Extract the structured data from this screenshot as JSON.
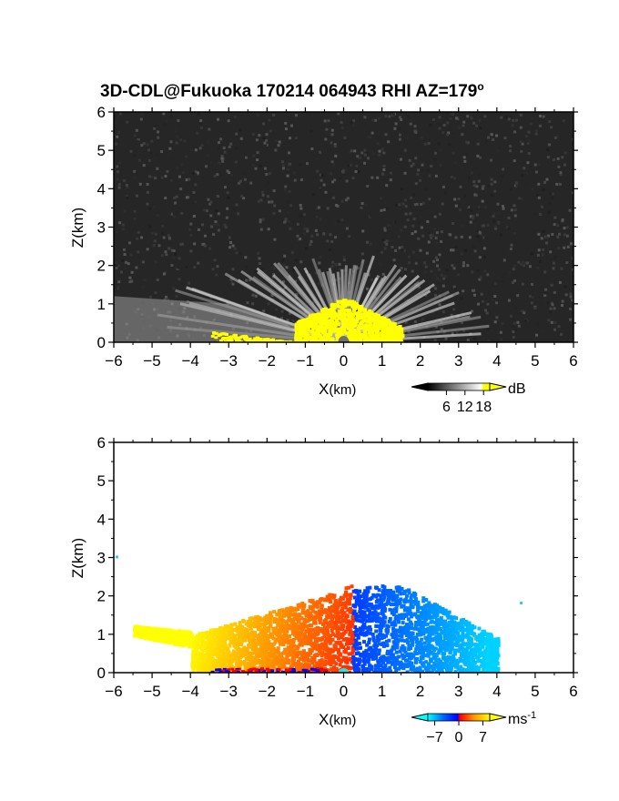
{
  "chart_data": [
    {
      "type": "heatmap",
      "title": "3D-CDL@Fukuoka 170214 064943 RHI AZ=179",
      "title_superscript": "o",
      "xlabel": "X",
      "xlabel_unit": "(km)",
      "ylabel": "Z(km)",
      "xlim": [
        -6,
        6
      ],
      "ylim": [
        0,
        6
      ],
      "xticks": [
        -6,
        -5,
        -4,
        -3,
        -2,
        -1,
        0,
        1,
        2,
        3,
        4,
        5,
        6
      ],
      "yticks": [
        0,
        1,
        2,
        3,
        4,
        5,
        6
      ],
      "colorbar": {
        "unit": "dB",
        "ticks": [
          6,
          12,
          18
        ],
        "range": [
          0,
          20
        ],
        "palette": "grayscale, values above 18 yellow",
        "colors": [
          "#000000",
          "#ffffff",
          "#ffff00"
        ]
      },
      "field_extent": {
        "echo_top_km": 2.3,
        "echo_x_range_km": [
          -6,
          4
        ],
        "saturated_core_x_range_km": [
          -1.3,
          1.5
        ],
        "saturated_core_top_km": 1.2
      }
    },
    {
      "type": "heatmap",
      "xlabel": "X",
      "xlabel_unit": "(km)",
      "ylabel": "Z(km)",
      "xlim": [
        -6,
        6
      ],
      "ylim": [
        0,
        6
      ],
      "xticks": [
        -6,
        -5,
        -4,
        -3,
        -2,
        -1,
        0,
        1,
        2,
        3,
        4,
        5,
        6
      ],
      "yticks": [
        0,
        1,
        2,
        3,
        4,
        5,
        6
      ],
      "colorbar": {
        "unit": "ms",
        "unit_superscript": "-1",
        "ticks": [
          "−7",
          "0",
          "7"
        ],
        "tick_values": [
          -7,
          0,
          7
        ],
        "range": [
          -9,
          9
        ],
        "palette": "cyan-blue (negative) to red-yellow (positive)",
        "colors": [
          "#00ffff",
          "#0033ff",
          "#ff0000",
          "#ff9900",
          "#ffff00"
        ]
      },
      "field_extent": {
        "echo_top_km": 2.3,
        "echo_x_range_km": [
          -5.5,
          4
        ],
        "zero_line_x_km": 0.2
      }
    }
  ]
}
